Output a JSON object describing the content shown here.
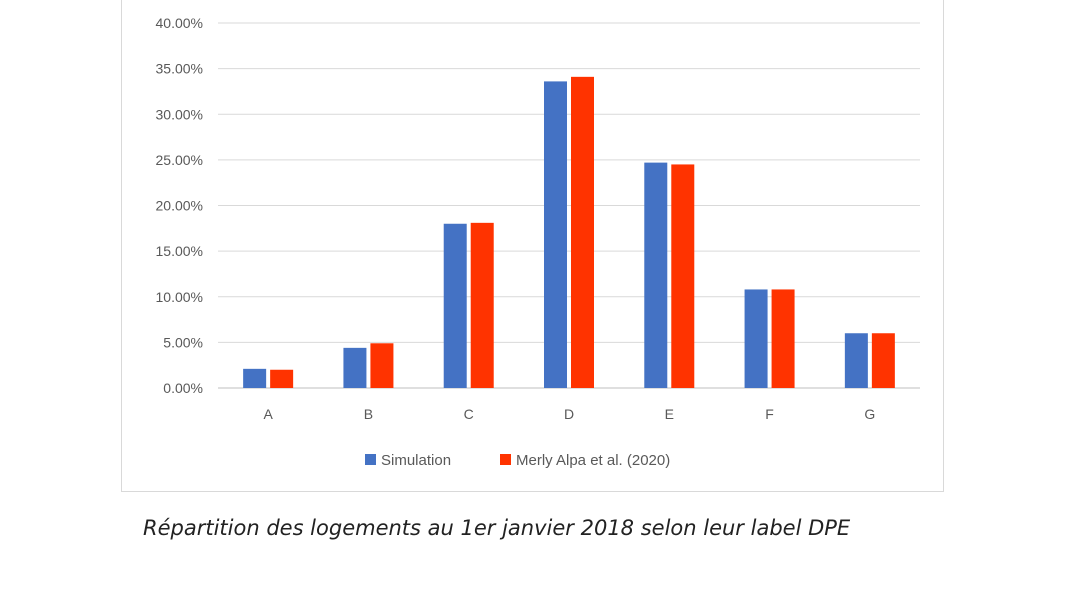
{
  "caption": "Répartition des logements au 1er janvier 2018 selon leur label DPE",
  "chart_data": {
    "type": "bar",
    "categories": [
      "A",
      "B",
      "C",
      "D",
      "E",
      "F",
      "G"
    ],
    "series": [
      {
        "name": "Simulation",
        "color": "#4472C4",
        "values": [
          2.1,
          4.4,
          18.0,
          33.6,
          24.7,
          10.8,
          6.0
        ]
      },
      {
        "name": "Merly Alpa et al. (2020)",
        "color": "#FF3300",
        "values": [
          2.0,
          4.9,
          18.1,
          34.1,
          24.5,
          10.8,
          6.0
        ]
      }
    ],
    "ylim": [
      0,
      40
    ],
    "yticks": [
      "0.00%",
      "5.00%",
      "10.00%",
      "15.00%",
      "20.00%",
      "25.00%",
      "30.00%",
      "35.00%",
      "40.00%"
    ],
    "grid": true,
    "legend_position": "bottom"
  }
}
